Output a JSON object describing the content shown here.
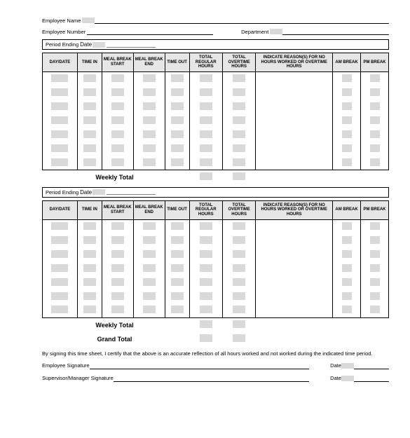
{
  "header": {
    "employee_name_label": "Employee Name",
    "employee_number_label": "Employee Number",
    "department_label": "Department",
    "period_ending_label": "Period Ending",
    "date_label": "Date"
  },
  "columns": {
    "day": "DAY/DATE",
    "time_in": "TIME IN",
    "meal_start": "MEAL BREAK START",
    "meal_end": "MEAL BREAK END",
    "time_out": "TIME OUT",
    "reg_hours": "TOTAL REGULAR HOURS",
    "ot_hours": "TOTAL OVERTIME HOURS",
    "reason": "INDICATE REASON(S) FOR NO HOURS WORKED OR OVERTIME HOURS",
    "am_break": "AM BREAK",
    "pm_break": "PM BREAK"
  },
  "totals": {
    "weekly": "Weekly Total",
    "grand": "Grand Total"
  },
  "footer": {
    "cert": "By signing this time sheet, I certify that the above is an accurate reflection of all hours worked and not worked during the indicated time period.",
    "emp_sig": "Employee Signature",
    "sup_sig": "Supervisor/Manager Signature",
    "date": "Date"
  },
  "rows_per_week": 7,
  "colors": {
    "header_bg": "#e6e6e6",
    "redact": "#d9d9d9"
  }
}
